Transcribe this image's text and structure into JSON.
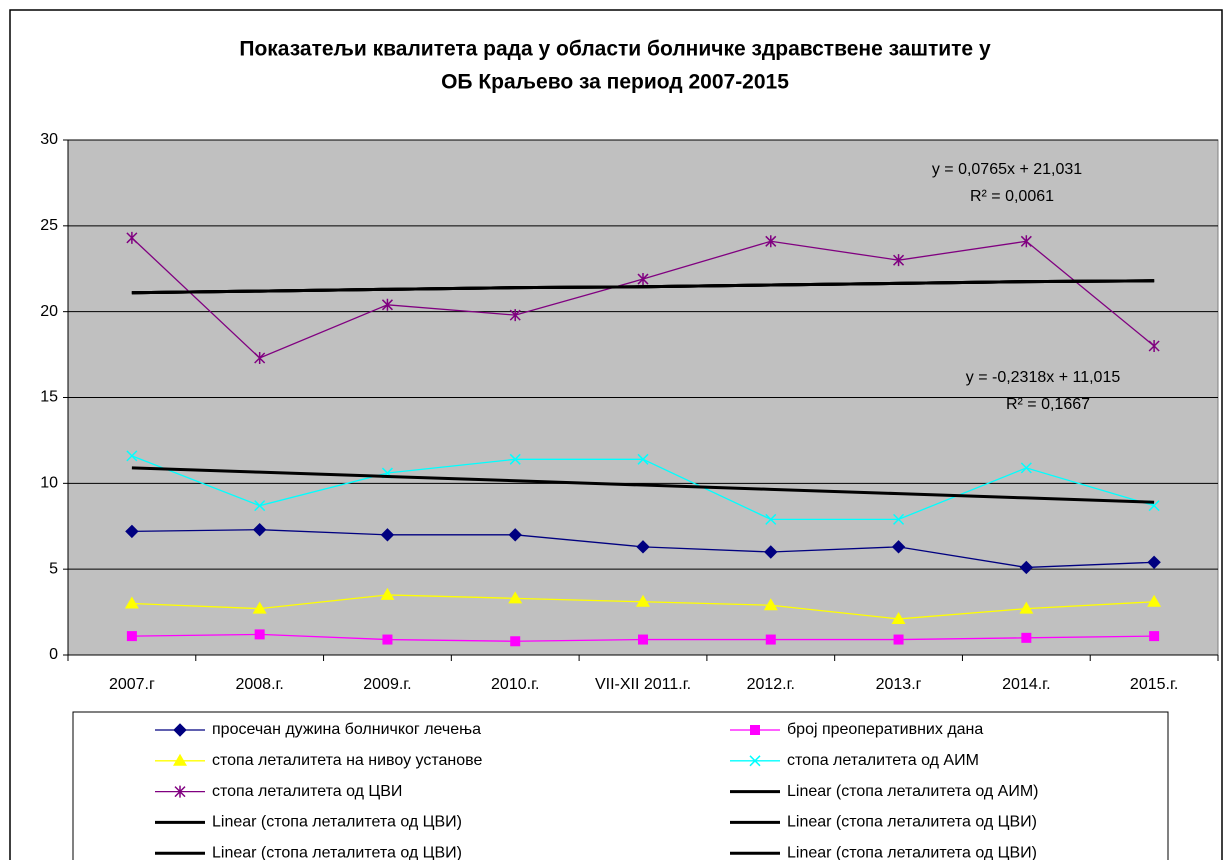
{
  "chart_data": {
    "type": "line",
    "title": [
      "Показатељи квалитета рада у области болничке здравствене заштите у",
      "ОБ Краљево за период  2007-2015"
    ],
    "categories": [
      "2007.г",
      "2008.г.",
      "2009.г.",
      "2010.г.",
      "VII-XII 2011.г.",
      "2012.г.",
      "2013.г",
      "2014.г.",
      "2015.г."
    ],
    "ylim": [
      0,
      30
    ],
    "yticks": [
      0,
      5,
      10,
      15,
      20,
      25,
      30
    ],
    "grid": true,
    "plot_background": "#c0c0c0",
    "series": [
      {
        "name": "просечан дужина болничког лечења",
        "color": "#000080",
        "marker": "diamond",
        "values": [
          7.2,
          7.3,
          7.0,
          7.0,
          6.3,
          6.0,
          6.3,
          5.1,
          5.4
        ]
      },
      {
        "name": "број преоперативних дана",
        "color": "#ff00ff",
        "marker": "square",
        "values": [
          1.1,
          1.2,
          0.9,
          0.8,
          0.9,
          0.9,
          0.9,
          1.0,
          1.1
        ]
      },
      {
        "name": "стопа леталитета на нивоу установе",
        "color": "#ffff00",
        "marker": "triangle",
        "values": [
          3.0,
          2.7,
          3.5,
          3.3,
          3.1,
          2.9,
          2.1,
          2.7,
          3.1
        ]
      },
      {
        "name": "стопа леталитета од АИМ",
        "color": "#00ffff",
        "marker": "x",
        "values": [
          11.6,
          8.7,
          10.6,
          11.4,
          11.4,
          7.9,
          7.9,
          10.9,
          8.7
        ]
      },
      {
        "name": "стопа леталитета од ЦВИ",
        "color": "#800080",
        "marker": "star",
        "values": [
          24.3,
          17.3,
          20.4,
          19.8,
          21.9,
          24.1,
          23.0,
          24.1,
          18.0
        ]
      },
      {
        "name": "Linear (стопа леталитета од АИМ)",
        "color": "#000000",
        "marker": "none",
        "values": [
          10.9,
          10.65,
          10.4,
          10.15,
          9.9,
          9.65,
          9.4,
          9.15,
          8.9
        ]
      },
      {
        "name": "Linear (стопа леталитета од ЦВИ)",
        "color": "#000000",
        "marker": "none",
        "values": [
          21.1,
          21.2,
          21.3,
          21.4,
          21.45,
          21.55,
          21.65,
          21.75,
          21.8
        ]
      },
      {
        "name": "Linear (стопа леталитета од ЦВИ)",
        "color": "#000000",
        "marker": "none",
        "values": [
          21.1,
          21.2,
          21.3,
          21.4,
          21.45,
          21.55,
          21.65,
          21.75,
          21.8
        ]
      },
      {
        "name": "Linear (стопа леталитета од ЦВИ)",
        "color": "#000000",
        "marker": "none",
        "values": [
          21.1,
          21.2,
          21.3,
          21.4,
          21.45,
          21.55,
          21.65,
          21.75,
          21.8
        ]
      },
      {
        "name": "Linear (стопа леталитета од ЦВИ)",
        "color": "#000000",
        "marker": "none",
        "values": [
          21.1,
          21.2,
          21.3,
          21.4,
          21.45,
          21.55,
          21.65,
          21.75,
          21.8
        ]
      }
    ],
    "annotations": [
      {
        "lines": [
          "y = 0,0765x + 21,031",
          "R² = 0,0061"
        ]
      },
      {
        "lines": [
          "y = -0,2318x + 11,015",
          "R² = 0,1667"
        ]
      }
    ]
  }
}
